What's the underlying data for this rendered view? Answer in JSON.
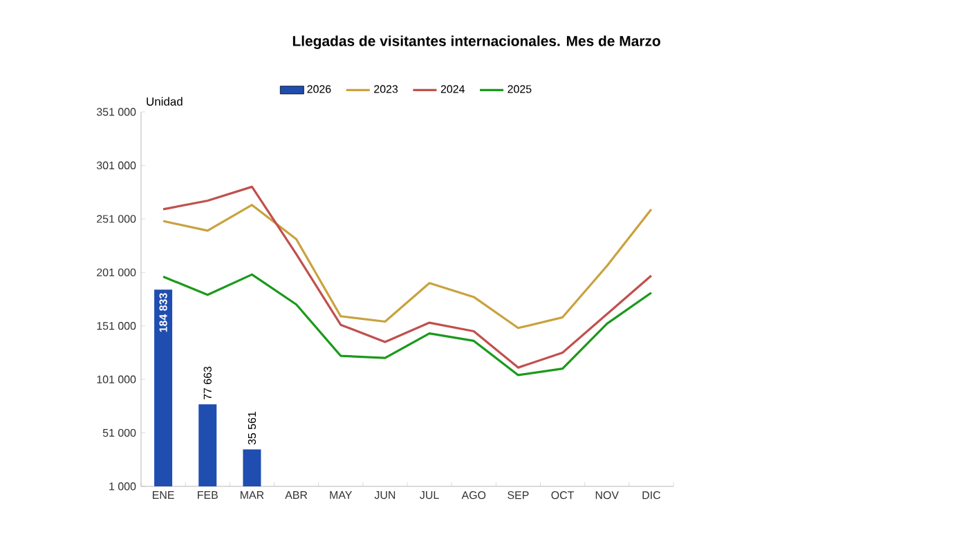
{
  "chart_data": {
    "type": "line",
    "title": "Llegadas de visitantes internacionales. Mes de Marzo",
    "ylabel": "Unidad",
    "categories": [
      "ENE",
      "FEB",
      "MAR",
      "ABR",
      "MAY",
      "JUN",
      "JUL",
      "AGO",
      "SEP",
      "OCT",
      "NOV",
      "DIC"
    ],
    "series": [
      {
        "name": "2026",
        "type": "bar",
        "color": "#1f4db0",
        "values": [
          184833,
          77663,
          35561,
          null,
          null,
          null,
          null,
          null,
          null,
          null,
          null,
          null
        ],
        "value_labels": [
          "184 833",
          "77 663",
          "35 561",
          null,
          null,
          null,
          null,
          null,
          null,
          null,
          null,
          null
        ]
      },
      {
        "name": "2023",
        "color": "#c9a23e",
        "values": [
          249000,
          240000,
          264000,
          232000,
          160000,
          155000,
          191000,
          178000,
          149000,
          159000,
          207000,
          260000
        ]
      },
      {
        "name": "2024",
        "color": "#c0504d",
        "values": [
          260000,
          268000,
          281000,
          218000,
          152000,
          136000,
          154000,
          146000,
          112000,
          126000,
          162000,
          198000
        ]
      },
      {
        "name": "2025",
        "color": "#1a9a1a",
        "values": [
          197000,
          180000,
          199000,
          171000,
          123000,
          121000,
          144000,
          137000,
          105000,
          111000,
          153000,
          182000
        ]
      }
    ],
    "ylim": [
      1000,
      351000
    ],
    "yticks": [
      {
        "value": 1000,
        "label": "1 000"
      },
      {
        "value": 51000,
        "label": "51 000"
      },
      {
        "value": 101000,
        "label": "101 000"
      },
      {
        "value": 151000,
        "label": "151 000"
      },
      {
        "value": 201000,
        "label": "201 000"
      },
      {
        "value": 251000,
        "label": "251 000"
      },
      {
        "value": 301000,
        "label": "301 000"
      },
      {
        "value": 351000,
        "label": "351 000"
      }
    ],
    "legend": "top",
    "grid": false
  }
}
